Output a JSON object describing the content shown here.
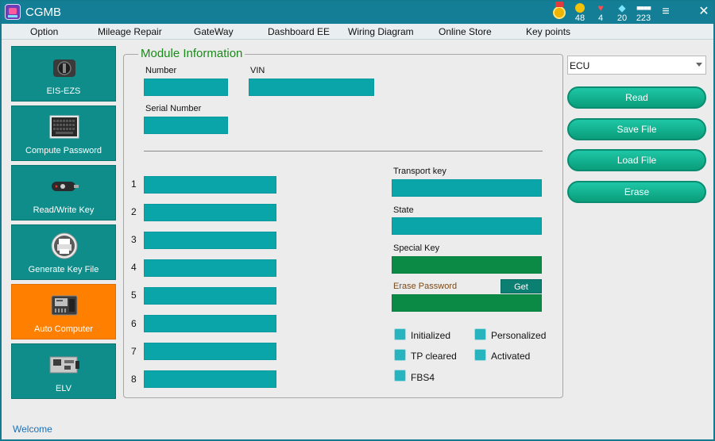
{
  "app": {
    "title": "CGMB"
  },
  "title_stats": [
    {
      "icon": "gold-coin-icon",
      "value": "48"
    },
    {
      "icon": "heart-icon",
      "value": "4"
    },
    {
      "icon": "diamond-icon",
      "value": "20"
    },
    {
      "icon": "chip-icon",
      "value": "223"
    }
  ],
  "menu": [
    "Option",
    "Mileage Repair",
    "GateWay",
    "Dashboard EE",
    "Wiring Diagram",
    "Online Store",
    "Key points"
  ],
  "nav": [
    {
      "label": "EIS-EZS",
      "icon": "ignition-switch-icon",
      "active": false
    },
    {
      "label": "Compute Password",
      "icon": "keyboard-icon",
      "active": false
    },
    {
      "label": "Read/Write Key",
      "icon": "car-key-icon",
      "active": false
    },
    {
      "label": "Generate Key File",
      "icon": "printer-icon",
      "active": false
    },
    {
      "label": "Auto Computer",
      "icon": "ecu-module-icon",
      "active": true
    },
    {
      "label": "ELV",
      "icon": "circuit-board-icon",
      "active": false
    }
  ],
  "module": {
    "title": "Module Information",
    "number_label": "Number",
    "vin_label": "VIN",
    "serial_label": "Serial Number",
    "rows": [
      "1",
      "2",
      "3",
      "4",
      "5",
      "6",
      "7",
      "8"
    ],
    "transport_key_label": "Transport key",
    "state_label": "State",
    "special_key_label": "Special Key",
    "erase_password_label": "Erase Password",
    "get_label": "Get",
    "checks": {
      "initialized": "Initialized",
      "personalized": "Personalized",
      "tp_cleared": "TP cleared",
      "activated": "Activated",
      "fbs4": "FBS4"
    }
  },
  "right": {
    "select_value": "ECU",
    "buttons": [
      "Read",
      "Save File",
      "Load File",
      "Erase"
    ]
  },
  "status": "Welcome",
  "colors": {
    "titlebar": "#137e95",
    "nav_tile": "#0e8d8a",
    "nav_active": "#ff7f00",
    "field": "#0aa5a8",
    "field_green": "#0a8a45",
    "panel_title": "#1a8a1a",
    "button": "#0fb08d"
  }
}
